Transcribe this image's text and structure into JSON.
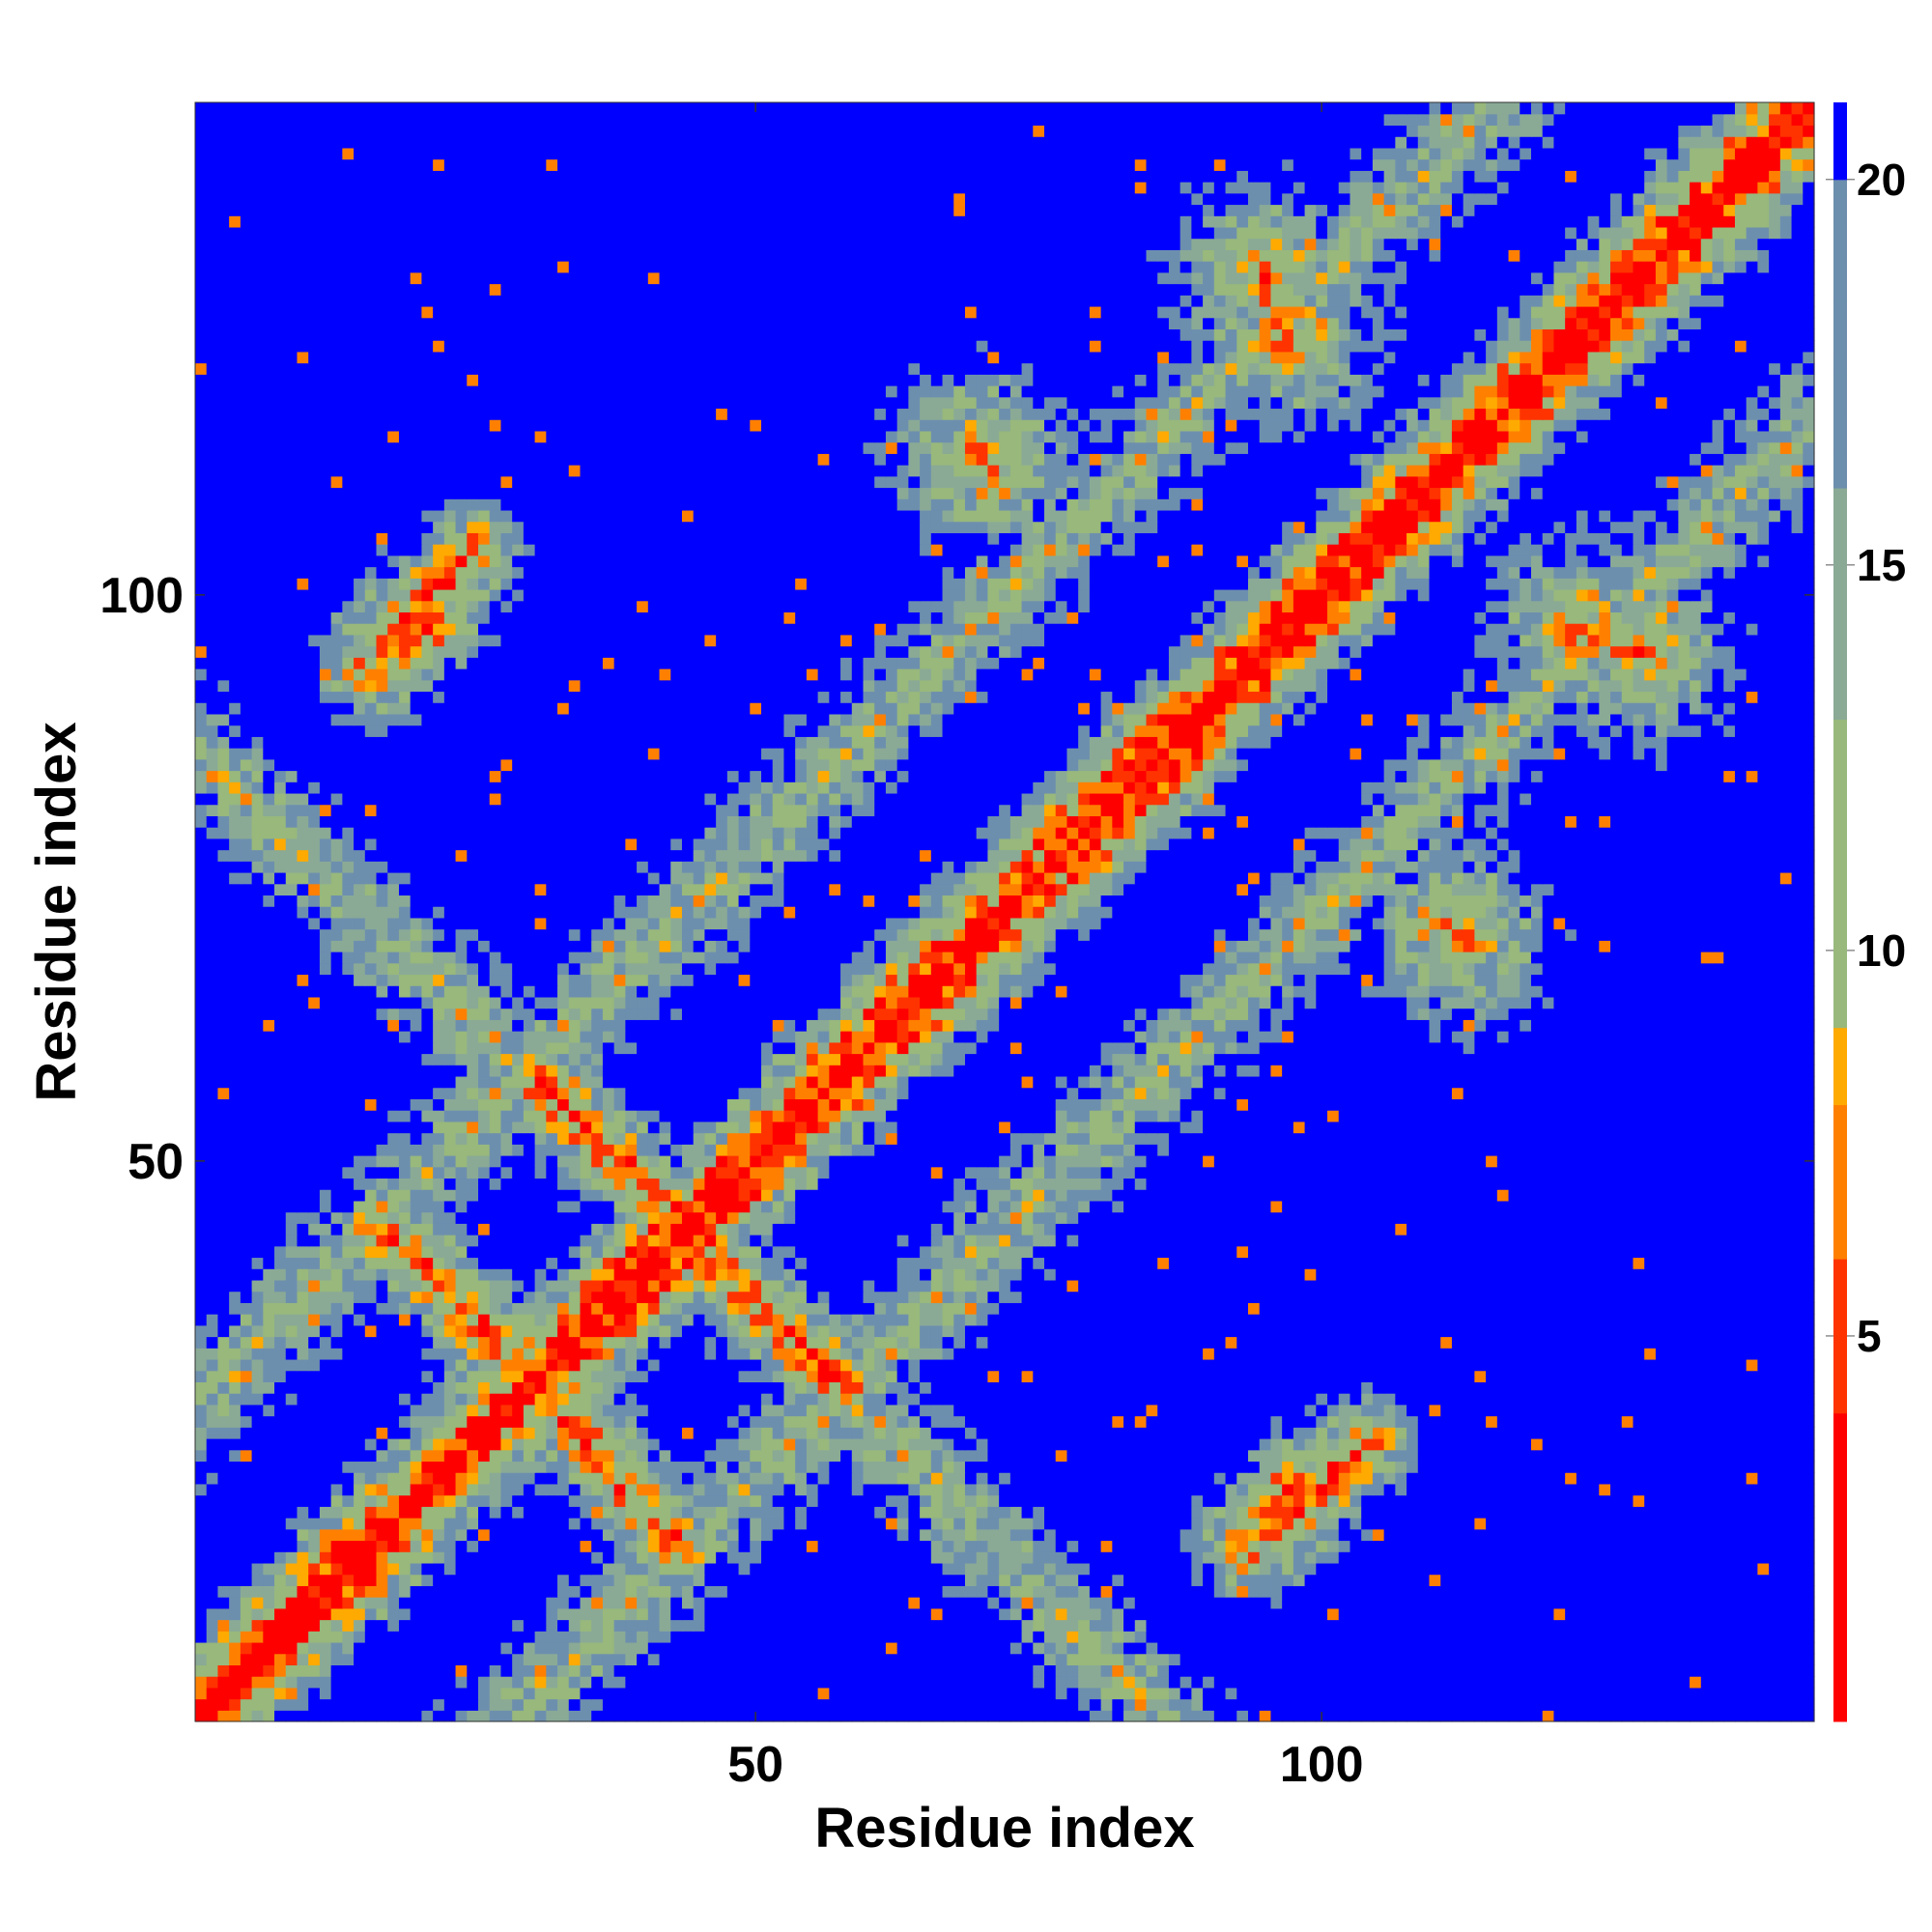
{
  "chart_data": {
    "type": "heatmap",
    "title": "",
    "xlabel": "Residue index",
    "ylabel": "Residue index",
    "n_residues": 143,
    "x_range": [
      0.5,
      143.5
    ],
    "y_range": [
      0.5,
      143.5
    ],
    "x_ticks": [
      50,
      100
    ],
    "y_ticks": [
      50,
      100
    ],
    "colorbar": {
      "range": [
        0,
        21
      ],
      "ticks": [
        5,
        10,
        15,
        20
      ],
      "color_stops": [
        {
          "value": 0,
          "color": "#ff0000"
        },
        {
          "value": 4,
          "color": "#ff3300"
        },
        {
          "value": 6,
          "color": "#ff8000"
        },
        {
          "value": 8,
          "color": "#ffaa00"
        },
        {
          "value": 9,
          "color": "#98b87c"
        },
        {
          "value": 13,
          "color": "#8aaa96"
        },
        {
          "value": 16,
          "color": "#6d8fae"
        },
        {
          "value": 20,
          "color": "#5a7fb7"
        },
        {
          "value": 20.01,
          "color": "#0000ff"
        }
      ]
    },
    "description_of_values": "Symmetric residue-residue distance map; diagonal values near 0 (red), strong blue background for distances above 20",
    "contact_features": [
      {
        "kind": "main-diagonal",
        "from": [
          1,
          1
        ],
        "to": [
          143,
          143
        ]
      },
      {
        "kind": "antiparallel",
        "from": [
          31,
          57
        ],
        "to": [
          43,
          45
        ]
      },
      {
        "kind": "antiparallel",
        "from": [
          17,
          44
        ],
        "to": [
          31,
          30
        ]
      },
      {
        "kind": "antiparallel",
        "from": [
          43,
          44
        ],
        "to": [
          58,
          30
        ]
      },
      {
        "kind": "antiparallel",
        "from": [
          31,
          30
        ],
        "to": [
          43,
          16
        ]
      },
      {
        "kind": "parallel",
        "from": [
          17,
          96
        ],
        "to": [
          25,
          104
        ]
      },
      {
        "kind": "parallel",
        "from": [
          96,
          17
        ],
        "to": [
          104,
          25
        ]
      },
      {
        "kind": "parallel",
        "from": [
          93,
          16
        ],
        "to": [
          98,
          22
        ]
      },
      {
        "kind": "parallel",
        "from": [
          16,
          93
        ],
        "to": [
          22,
          98
        ]
      },
      {
        "kind": "off-diagonal-cluster",
        "center": [
          123,
          97
        ]
      },
      {
        "kind": "off-diagonal-cluster",
        "center": [
          97,
          123
        ]
      },
      {
        "kind": "off-diagonal-cluster",
        "center": [
          95,
          128
        ]
      },
      {
        "kind": "off-diagonal-cluster",
        "center": [
          128,
          95
        ]
      },
      {
        "kind": "off-diagonal-cluster",
        "center": [
          70,
          112
        ]
      },
      {
        "kind": "off-diagonal-cluster",
        "center": [
          112,
          70
        ]
      }
    ]
  }
}
